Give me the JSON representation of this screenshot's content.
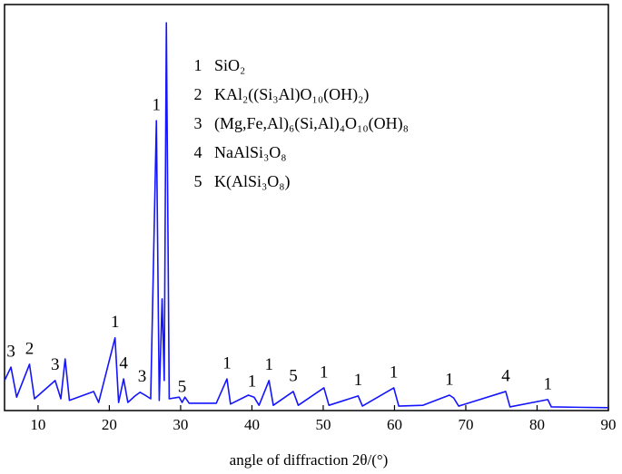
{
  "chart_data": {
    "type": "line",
    "x_label": "angle of diffraction 2θ/(°)",
    "xlim": [
      5.3,
      90
    ],
    "xticks": [
      10,
      20,
      30,
      40,
      50,
      60,
      70,
      80,
      90
    ],
    "ylim": [
      0,
      100
    ],
    "color": "#1414ff",
    "x": [
      5.3,
      6.2,
      7,
      8.8,
      9.5,
      12.4,
      13.2,
      13.8,
      14.4,
      17.8,
      18.5,
      20.8,
      21.3,
      22.0,
      22.6,
      23.6,
      24.3,
      25.0,
      25.8,
      26.6,
      27.0,
      27.4,
      27.7,
      28.0,
      28.4,
      29.8,
      30.2,
      30.6,
      31.2,
      35.0,
      36.5,
      37.0,
      39.5,
      40.3,
      41,
      42.4,
      43,
      45.8,
      46.5,
      50.1,
      50.8,
      54.9,
      55.5,
      59.9,
      60.6,
      64,
      67.7,
      68.3,
      69,
      75.6,
      76.2,
      81.5,
      82,
      90
    ],
    "values": [
      7.4,
      10.7,
      3.3,
      11.4,
      2.9,
      7.4,
      2.9,
      12.7,
      2.5,
      4.7,
      2.0,
      17.9,
      2.0,
      7.8,
      2.0,
      3.6,
      4.5,
      3.8,
      2.9,
      71.4,
      2.5,
      27.5,
      7.4,
      95.5,
      2.9,
      3.3,
      2.0,
      3.3,
      1.8,
      1.8,
      7.8,
      1.6,
      3.8,
      3.3,
      1.3,
      7.4,
      1.3,
      4.7,
      1.3,
      5.6,
      1.3,
      3.6,
      1.1,
      5.6,
      1.1,
      1.3,
      3.8,
      3.1,
      1.1,
      4.7,
      0.9,
      2.7,
      0.9,
      0.7
    ],
    "peak_labels": [
      {
        "x": 6.2,
        "label": "3"
      },
      {
        "x": 8.8,
        "label": "2"
      },
      {
        "x": 12.4,
        "label": "3"
      },
      {
        "x": 20.8,
        "label": "1"
      },
      {
        "x": 22.0,
        "label": "4"
      },
      {
        "x": 24.6,
        "label": "3"
      },
      {
        "x": 26.6,
        "label": "1"
      },
      {
        "x": 30.2,
        "label": "5"
      },
      {
        "x": 36.5,
        "label": "1"
      },
      {
        "x": 40.0,
        "label": "1"
      },
      {
        "x": 42.4,
        "label": "1"
      },
      {
        "x": 45.8,
        "label": "5"
      },
      {
        "x": 50.1,
        "label": "1"
      },
      {
        "x": 54.9,
        "label": "1"
      },
      {
        "x": 59.9,
        "label": "1"
      },
      {
        "x": 67.7,
        "label": "1"
      },
      {
        "x": 75.6,
        "label": "4"
      },
      {
        "x": 81.5,
        "label": "1"
      }
    ],
    "legend_items": [
      {
        "number": "1",
        "formula": "SiO₂"
      },
      {
        "number": "2",
        "formula": "KAl₂((Si₃Al)O₁₀(OH)₂)"
      },
      {
        "number": "3",
        "formula": "(Mg,Fe,Al)₆(Si,Al)₄O₁₀(OH)₈"
      },
      {
        "number": "4",
        "formula": "NaAlSi₃O₈"
      },
      {
        "number": "5",
        "formula": "K(AlSi₃O₈)"
      }
    ]
  }
}
